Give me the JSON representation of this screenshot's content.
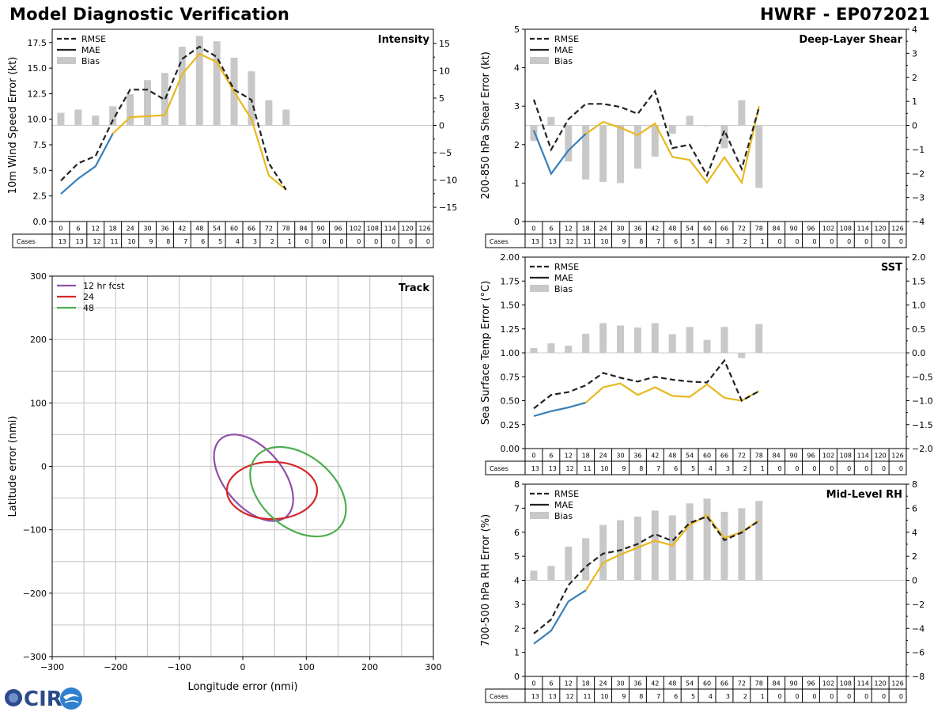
{
  "header": {
    "title_left": "Model Diagnostic Verification",
    "title_right": "HWRF - EP072021"
  },
  "logo_text": "CIRA",
  "legend_labels": {
    "rmse": "RMSE",
    "mae": "MAE",
    "bias": "Bias"
  },
  "lead_times": [
    "0",
    "6",
    "12",
    "18",
    "24",
    "30",
    "36",
    "42",
    "48",
    "54",
    "60",
    "66",
    "72",
    "78",
    "84",
    "90",
    "96",
    "102",
    "108",
    "114",
    "120",
    "126"
  ],
  "cases_label": "Cases",
  "colors": {
    "rmse": "#222222",
    "mae_early": "#3a7fb8",
    "mae_late": "#e8b820",
    "bias": "#c8c8c8",
    "grid": "#cccccc"
  },
  "chart_data": [
    {
      "id": "intensity",
      "type": "line",
      "title": "Intensity",
      "ylabel": "10m Wind Speed Error (kt)",
      "ylim": [
        0,
        18.8
      ],
      "yticks": [
        "0.0",
        "2.5",
        "5.0",
        "7.5",
        "10.0",
        "12.5",
        "15.0",
        "17.5"
      ],
      "ytick_values": [
        0,
        2.5,
        5,
        7.5,
        10,
        12.5,
        15,
        17.5
      ],
      "y2lim": [
        -17.6,
        17.6
      ],
      "y2ticks": [
        "−15",
        "−10",
        "−5",
        "0",
        "5",
        "10",
        "15"
      ],
      "y2tick_values": [
        -15,
        -10,
        -5,
        0,
        5,
        10,
        15
      ],
      "rmse": [
        4.0,
        5.7,
        6.4,
        9.9,
        12.9,
        12.9,
        11.9,
        15.9,
        17.1,
        16.1,
        12.9,
        11.9,
        5.7,
        3.1
      ],
      "mae": [
        2.7,
        4.2,
        5.4,
        8.6,
        10.2,
        10.3,
        10.4,
        14.4,
        16.4,
        15.6,
        12.7,
        10.0,
        4.5,
        3.1
      ],
      "bias": [
        2.3,
        2.9,
        1.8,
        3.5,
        5.7,
        8.3,
        9.6,
        14.4,
        16.4,
        15.4,
        12.4,
        9.9,
        4.6,
        2.9
      ],
      "cases": [
        "13",
        "13",
        "12",
        "11",
        "10",
        "9",
        "8",
        "7",
        "6",
        "5",
        "4",
        "3",
        "2",
        "1",
        "0",
        "0",
        "0",
        "0",
        "0",
        "0",
        "0",
        "0"
      ]
    },
    {
      "id": "shear",
      "type": "line",
      "title": "Deep-Layer Shear",
      "ylabel": "200-850 hPa Shear Error (kt)",
      "ylim": [
        0,
        5
      ],
      "yticks": [
        "0",
        "1",
        "2",
        "3",
        "4",
        "5"
      ],
      "ytick_values": [
        0,
        1,
        2,
        3,
        4,
        5
      ],
      "y2lim": [
        -4,
        4
      ],
      "y2ticks": [
        "−4",
        "−3",
        "−2",
        "−1",
        "0",
        "1",
        "2",
        "3",
        "4"
      ],
      "y2tick_values": [
        -4,
        -3,
        -2,
        -1,
        0,
        1,
        2,
        3,
        4
      ],
      "rmse": [
        3.17,
        1.87,
        2.66,
        3.06,
        3.06,
        2.98,
        2.8,
        3.39,
        1.91,
        2.0,
        1.2,
        2.37,
        1.37,
        2.97
      ],
      "mae": [
        2.37,
        1.24,
        1.85,
        2.28,
        2.59,
        2.44,
        2.25,
        2.55,
        1.68,
        1.6,
        1.01,
        1.67,
        1.01,
        3.0
      ],
      "bias": [
        -0.65,
        0.35,
        -1.5,
        -2.25,
        -2.35,
        -2.4,
        -1.8,
        -1.3,
        -0.35,
        0.4,
        0.0,
        -0.95,
        1.05,
        -2.6
      ],
      "cases": [
        "13",
        "13",
        "12",
        "11",
        "10",
        "9",
        "8",
        "7",
        "6",
        "5",
        "4",
        "3",
        "2",
        "1",
        "0",
        "0",
        "0",
        "0",
        "0",
        "0",
        "0",
        "0"
      ]
    },
    {
      "id": "sst",
      "type": "line",
      "title": "SST",
      "ylabel": "Sea Surface Temp Error (°C)",
      "ylim": [
        0,
        2
      ],
      "yticks": [
        "0.00",
        "0.25",
        "0.50",
        "0.75",
        "1.00",
        "1.25",
        "1.50",
        "1.75",
        "2.00"
      ],
      "ytick_values": [
        0,
        0.25,
        0.5,
        0.75,
        1.0,
        1.25,
        1.5,
        1.75,
        2.0
      ],
      "y2lim": [
        -2,
        2
      ],
      "y2ticks": [
        "−2.0",
        "−1.5",
        "−1.0",
        "−0.5",
        "0.0",
        "0.5",
        "1.0",
        "1.5",
        "2.0"
      ],
      "y2tick_values": [
        -2,
        -1.5,
        -1,
        -0.5,
        0,
        0.5,
        1,
        1.5,
        2
      ],
      "rmse": [
        0.42,
        0.56,
        0.59,
        0.66,
        0.79,
        0.74,
        0.7,
        0.75,
        0.72,
        0.7,
        0.69,
        0.92,
        0.5,
        0.6
      ],
      "mae": [
        0.34,
        0.39,
        0.43,
        0.48,
        0.64,
        0.68,
        0.56,
        0.64,
        0.55,
        0.54,
        0.67,
        0.53,
        0.5,
        0.6
      ],
      "bias": [
        0.1,
        0.2,
        0.15,
        0.4,
        0.62,
        0.57,
        0.53,
        0.62,
        0.39,
        0.54,
        0.27,
        0.54,
        -0.11,
        0.6
      ],
      "cases": [
        "13",
        "13",
        "12",
        "11",
        "10",
        "9",
        "8",
        "7",
        "6",
        "5",
        "4",
        "3",
        "2",
        "1",
        "0",
        "0",
        "0",
        "0",
        "0",
        "0",
        "0",
        "0"
      ]
    },
    {
      "id": "rh",
      "type": "line",
      "title": "Mid-Level RH",
      "ylabel": "700-500 hPa RH Error (%)",
      "ylim": [
        0,
        8
      ],
      "yticks": [
        "0",
        "1",
        "2",
        "3",
        "4",
        "5",
        "6",
        "7",
        "8"
      ],
      "ytick_values": [
        0,
        1,
        2,
        3,
        4,
        5,
        6,
        7,
        8
      ],
      "y2lim": [
        -8,
        8
      ],
      "y2ticks": [
        "−8",
        "−6",
        "−4",
        "−2",
        "0",
        "2",
        "4",
        "6",
        "8"
      ],
      "y2tick_values": [
        -8,
        -6,
        -4,
        -2,
        0,
        2,
        4,
        6,
        8
      ],
      "rmse": [
        1.78,
        2.37,
        3.8,
        4.57,
        5.11,
        5.25,
        5.51,
        5.92,
        5.64,
        6.39,
        6.65,
        5.67,
        5.99,
        6.48
      ],
      "mae": [
        1.36,
        1.9,
        3.12,
        3.58,
        4.73,
        5.07,
        5.36,
        5.65,
        5.45,
        6.3,
        6.71,
        5.75,
        6.01,
        6.48
      ],
      "bias": [
        0.8,
        1.2,
        2.8,
        3.5,
        4.6,
        5.0,
        5.3,
        5.8,
        5.4,
        6.4,
        6.8,
        5.7,
        6.0,
        6.6
      ],
      "cases": [
        "13",
        "13",
        "12",
        "11",
        "10",
        "9",
        "8",
        "7",
        "6",
        "5",
        "4",
        "3",
        "2",
        "1",
        "0",
        "0",
        "0",
        "0",
        "0",
        "0",
        "0",
        "0"
      ]
    },
    {
      "id": "track",
      "type": "scatter",
      "title": "Track",
      "xlabel": "Longitude error (nmi)",
      "ylabel": "Latitude error (nmi)",
      "xlim": [
        -300,
        300
      ],
      "ylim": [
        -300,
        300
      ],
      "xticks": [
        "−300",
        "−200",
        "−100",
        "0",
        "100",
        "200",
        "300"
      ],
      "yticks": [
        "−300",
        "−200",
        "−100",
        "0",
        "100",
        "200",
        "300"
      ],
      "tick_values": [
        -300,
        -200,
        -100,
        0,
        100,
        200,
        300
      ],
      "grid_values": [
        -250,
        -200,
        -150,
        -100,
        -50,
        0,
        50,
        100,
        150,
        200,
        250
      ],
      "ellipses": [
        {
          "label": "12 hr fcst",
          "color": "#8e4fa8",
          "cx": 17,
          "cy": -18,
          "rx": 80,
          "ry": 46,
          "angle_deg": -50
        },
        {
          "label": "24",
          "color": "#d62728",
          "cx": 46,
          "cy": -38,
          "rx": 71,
          "ry": 45,
          "angle_deg": 0
        },
        {
          "label": "48",
          "color": "#4caf50",
          "cx": 87,
          "cy": -40,
          "rx": 86,
          "ry": 57,
          "angle_deg": -40
        }
      ]
    }
  ]
}
